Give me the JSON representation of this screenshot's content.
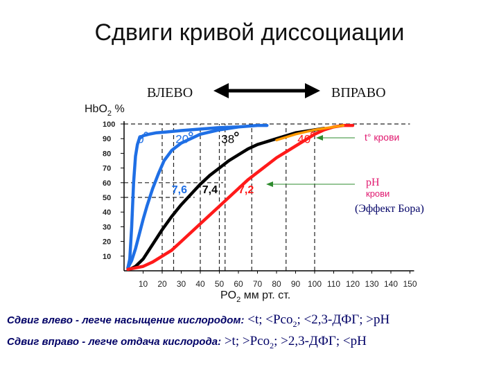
{
  "title": "Сдвиги кривой диссоциации",
  "chart_data": {
    "type": "line",
    "ylabel_main": "HbO",
    "ylabel_sub": "2",
    "ylabel_unit": "%",
    "xlabel_main": "PO",
    "xlabel_sub": "2",
    "xlabel_unit": "мм рт. ст.",
    "xlim": [
      0,
      150
    ],
    "ylim": [
      0,
      100
    ],
    "x_ticks": [
      10,
      20,
      30,
      40,
      50,
      60,
      70,
      80,
      90,
      100,
      110,
      120,
      130,
      140,
      150
    ],
    "y_ticks": [
      10,
      20,
      30,
      40,
      50,
      60,
      70,
      80,
      90,
      100
    ],
    "shift_left_label": "ВЛЕВО",
    "shift_right_label": "ВПРАВО",
    "series": [
      {
        "name": "0°",
        "color": "#1f6fe5",
        "x": [
          2,
          3,
          4,
          5,
          6,
          7,
          8,
          10,
          13,
          17,
          22,
          30,
          40,
          50,
          60
        ],
        "y": [
          2,
          8,
          30,
          60,
          78,
          86,
          90,
          92,
          93,
          94,
          94.5,
          95.5,
          96.5,
          97.5,
          98
        ]
      },
      {
        "name": "20°",
        "color": "#1f6fe5",
        "x": [
          2,
          4,
          6,
          8,
          10,
          12,
          15,
          18,
          21,
          25,
          30,
          35,
          40,
          50,
          60,
          70,
          75
        ],
        "y": [
          2,
          7,
          15,
          25,
          35,
          44,
          56,
          66,
          75,
          82,
          87,
          90,
          93,
          96,
          98,
          99,
          99
        ]
      },
      {
        "name": "38°",
        "color": "#000000",
        "x": [
          3,
          6,
          10,
          15,
          20,
          25,
          30,
          35,
          40,
          45,
          50,
          55,
          60,
          65,
          70,
          80,
          90,
          100,
          105
        ],
        "y": [
          1,
          3,
          8,
          18,
          28,
          37,
          45,
          52,
          59,
          65,
          70,
          75,
          79,
          83,
          86,
          90,
          94,
          96,
          97
        ]
      },
      {
        "name": "40°",
        "color": "#ff1a1a",
        "x": [
          2,
          6,
          10,
          15,
          20,
          25,
          30,
          35,
          40,
          45,
          50,
          55,
          60,
          65,
          70,
          75,
          80,
          85,
          90,
          95,
          100,
          105,
          110,
          115,
          120
        ],
        "y": [
          1,
          2,
          3,
          6,
          10,
          14,
          20,
          26,
          32,
          38,
          44,
          50,
          56,
          62,
          67,
          72,
          77,
          81,
          85,
          89,
          93,
          96,
          98,
          99,
          99
        ]
      }
    ],
    "orange_segment": {
      "color": "#ff9900",
      "x": [
        80,
        90,
        100,
        110,
        115
      ],
      "y": [
        89,
        93,
        96,
        98,
        99
      ]
    },
    "dashed_v_lines_x": [
      20,
      26,
      40,
      50,
      53,
      67,
      85,
      100
    ],
    "dashed_h_lines": [
      {
        "y": 50,
        "x_to": 37
      },
      {
        "y": 60,
        "x_to": 52
      },
      {
        "y": 100,
        "x_to": 150
      }
    ],
    "temperature_labels": [
      {
        "text": "0",
        "x": 7,
        "y": 87,
        "color": "#1f6fe5"
      },
      {
        "text": "20",
        "x": 27,
        "y": 87,
        "color": "#1f6fe5"
      },
      {
        "text": "38",
        "x": 51,
        "y": 87,
        "color": "#000000"
      },
      {
        "text": "40",
        "x": 91,
        "y": 87,
        "color": "#ff1a1a"
      }
    ],
    "ph_labels": [
      {
        "text": "7,6",
        "x": 25,
        "y": 57,
        "color": "#1f6fe5"
      },
      {
        "text": "7,4",
        "x": 41,
        "y": 57,
        "color": "#000000"
      },
      {
        "text": "7,2",
        "x": 60,
        "y": 57,
        "color": "#ff1a1a"
      }
    ],
    "annotations": {
      "temp": "t° крови",
      "ph_line1": "pH",
      "ph_line2": "крови",
      "bohr": "(Эффект Бора)"
    }
  },
  "captions": {
    "left_lead": "Сдвиг влево - легче насыщение кислородом:",
    "left_rest_1": " <t; <Pco",
    "left_sub_1": "2",
    "left_rest_2": "; <2,3-ДФГ; >pH",
    "right_lead": "Сдвиг вправо - легче отдача кислорода:",
    "right_rest_1": " >t; >Pco",
    "right_sub_1": "2",
    "right_rest_2": "; >2,3-ДФГ; <pH"
  }
}
